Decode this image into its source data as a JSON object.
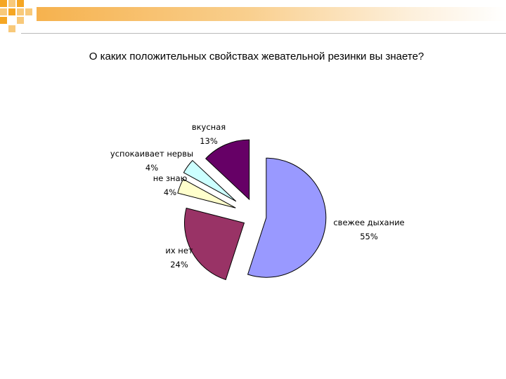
{
  "chart_data": {
    "type": "pie",
    "title": "О каких положительных свойствах жевательной резинки вы знаете?",
    "slices": [
      {
        "label": "свежее дыхание",
        "value": 55,
        "value_label": "55%",
        "color": "#9999ff"
      },
      {
        "label": "их нет",
        "value": 24,
        "value_label": "24%",
        "color": "#993366"
      },
      {
        "label": "не знаю",
        "value": 4,
        "value_label": "4%",
        "color": "#ffffcc"
      },
      {
        "label": "успокаивает нервы",
        "value": 4,
        "value_label": "4%",
        "color": "#ccffff"
      },
      {
        "label": "вкусная",
        "value": 13,
        "value_label": "13%",
        "color": "#660066"
      }
    ],
    "legend": "none",
    "exploded": true
  }
}
